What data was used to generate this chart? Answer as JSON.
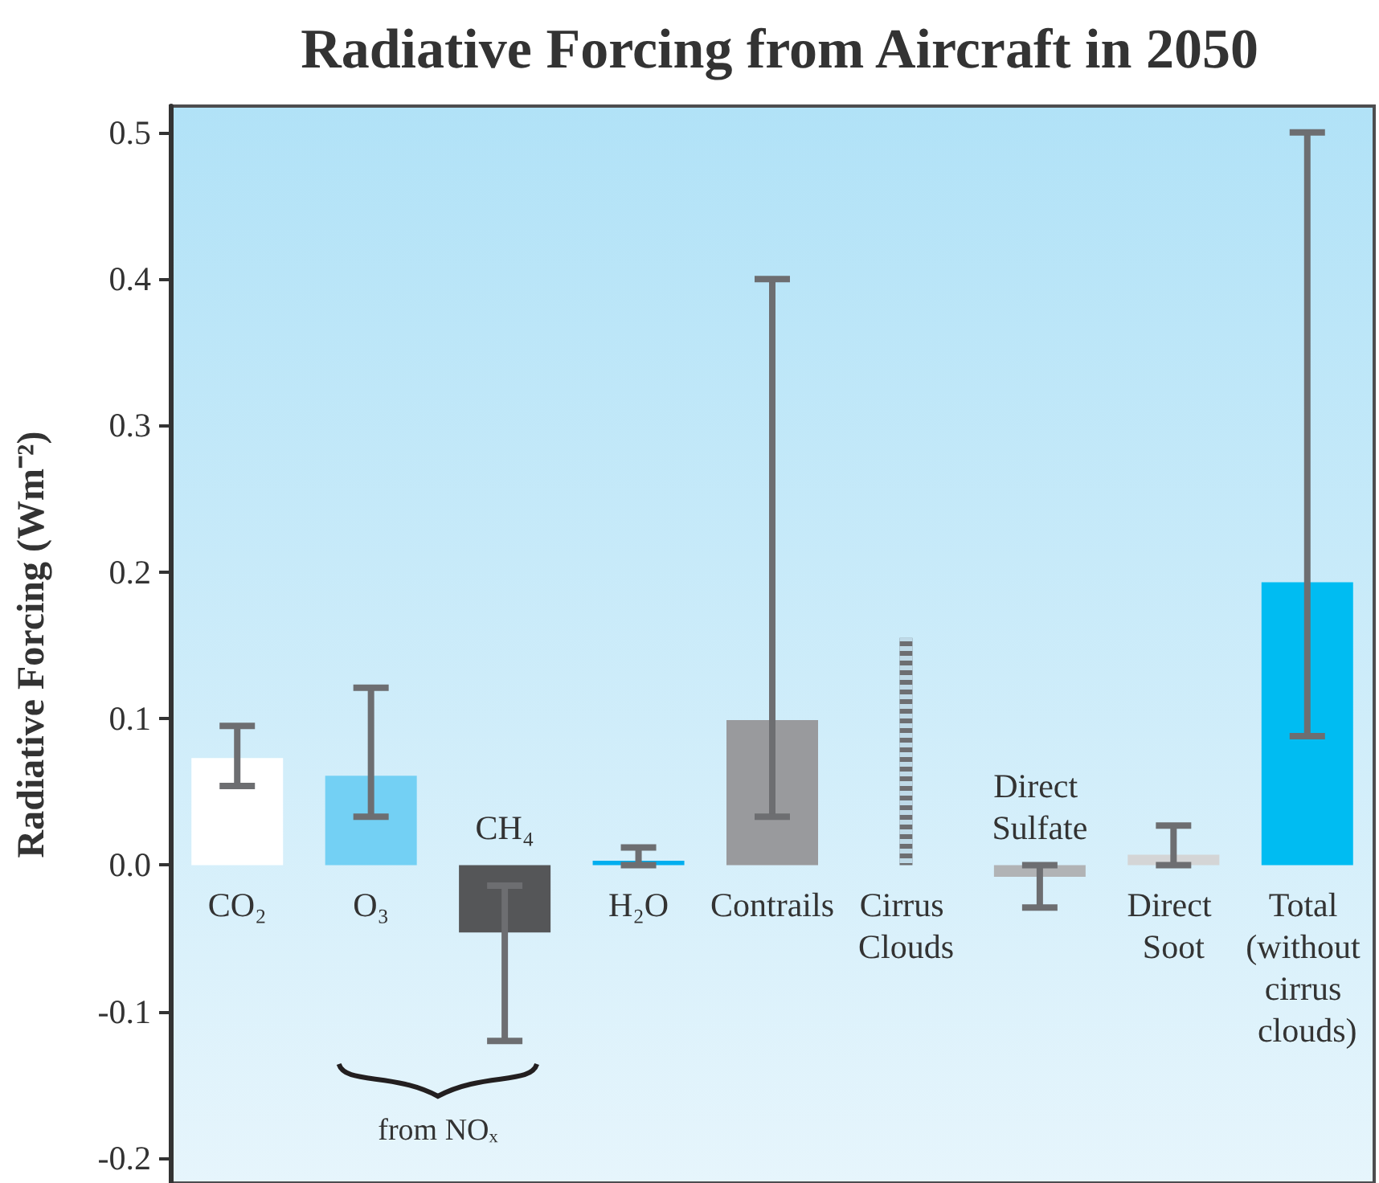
{
  "chart_data": {
    "type": "bar",
    "title": "Radiative Forcing from Aircraft in 2050",
    "ylabel": "Radiative Forcing (Wm⁻²)",
    "categories": [
      "CO₂",
      "O₃",
      "CH₄",
      "H₂O",
      "Contrails",
      "Cirrus Clouds",
      "Direct Sulfate",
      "Direct Soot",
      "Total (without cirrus clouds)"
    ],
    "series": [
      {
        "values": [
          0.073,
          0.061,
          -0.046,
          0.003,
          0.099,
          null,
          -0.008,
          0.007,
          0.193
        ],
        "colors": [
          "#ffffff",
          "#73d0f4",
          "#555658",
          "#00aeef",
          "#999a9d",
          null,
          "#b1b3b5",
          "#d4d5d6",
          "#00bcf2"
        ],
        "errors": [
          [
            0.054,
            0.095
          ],
          [
            0.033,
            0.121
          ],
          [
            -0.12,
            -0.014
          ],
          [
            0,
            0.012
          ],
          [
            0.033,
            0.4
          ],
          null,
          [
            -0.029,
            0
          ],
          [
            0,
            0.027
          ],
          [
            0.088,
            0.5
          ]
        ]
      },
      {
        "line_style": "dotted",
        "color": "#6d6e71",
        "values": [
          null,
          null,
          null,
          null,
          null,
          0.155,
          null,
          null,
          null
        ]
      }
    ],
    "annotations": [
      "from NOₓ"
    ],
    "ylim": [
      -0.217,
      0.518
    ],
    "yticks": [
      -0.2,
      -0.1,
      {
        "value": 0,
        "label": "0.0"
      },
      0.1,
      0.2,
      0.3,
      0.4,
      0.5
    ],
    "grid": false
  }
}
